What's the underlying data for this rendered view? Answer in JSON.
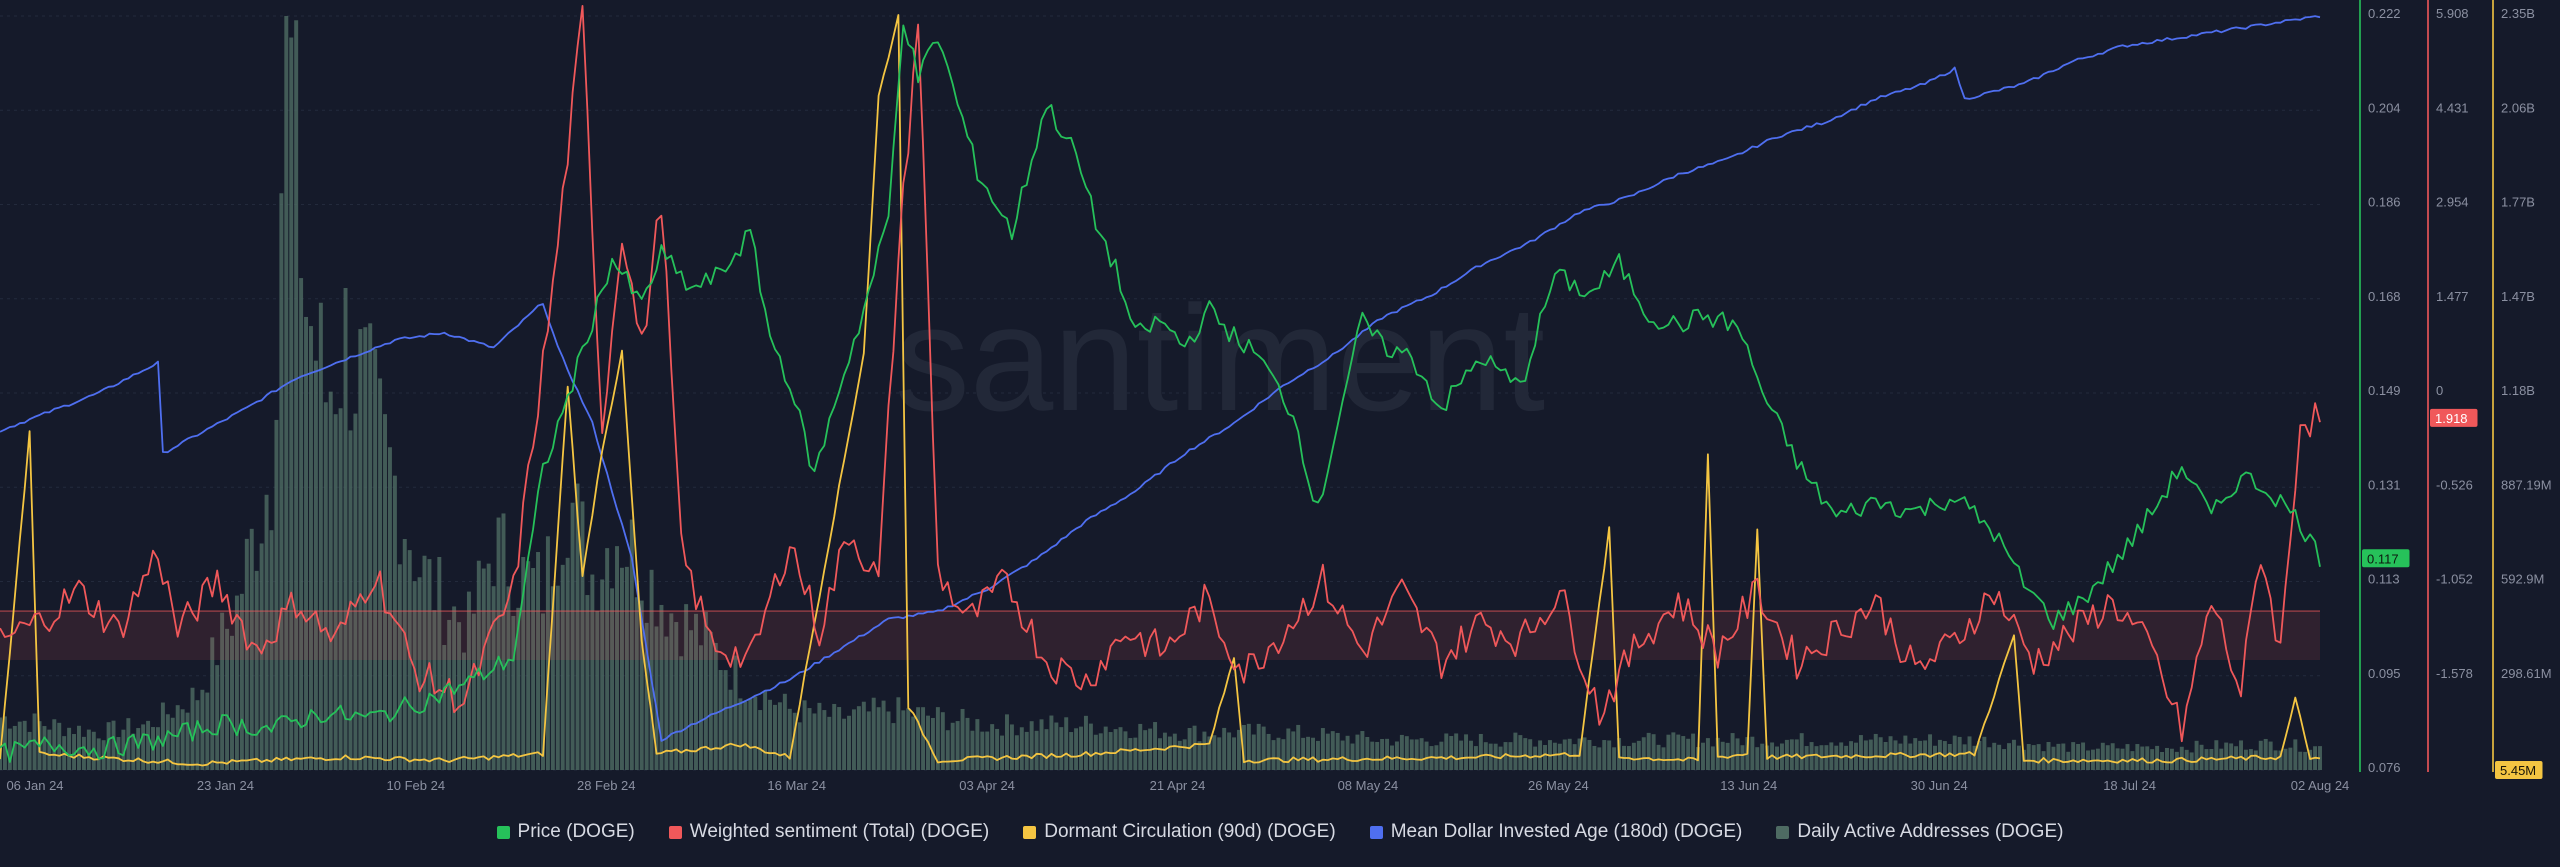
{
  "chart_data": {
    "type": "line",
    "watermark": "santiment",
    "x_ticks": [
      "06 Jan 24",
      "23 Jan 24",
      "10 Feb 24",
      "28 Feb 24",
      "16 Mar 24",
      "03 Apr 24",
      "21 Apr 24",
      "08 May 24",
      "26 May 24",
      "13 Jun 24",
      "30 Jun 24",
      "18 Jul 24",
      "02 Aug 24"
    ],
    "axes": {
      "price": {
        "ticks": [
          "0.222",
          "0.204",
          "0.186",
          "0.168",
          "0.149",
          "0.131",
          "0.113",
          "0.095",
          "0.076"
        ],
        "range": [
          0.076,
          0.222
        ],
        "color": "#26c15a",
        "current": "0.117"
      },
      "sentiment": {
        "ticks": [
          "5.908",
          "4.431",
          "2.954",
          "1.477",
          "0",
          "-0.526",
          "-1.052",
          "-1.578"
        ],
        "range": [
          -1.578,
          5.908
        ],
        "color": "#f0585a",
        "current": "1.918"
      },
      "dormant": {
        "ticks": [
          "2.35B",
          "2.06B",
          "1.77B",
          "1.47B",
          "1.18B",
          "887.19M",
          "592.9M",
          "298.61M"
        ],
        "range": [
          0,
          2.35
        ],
        "color": "#f4c542",
        "current": "5.45M"
      }
    },
    "series": [
      {
        "key": "price",
        "name": "Price (DOGE)",
        "color": "#26c15a",
        "values": [
          [
            0,
            0.079
          ],
          [
            10,
            0.081
          ],
          [
            20,
            0.08
          ],
          [
            33,
            0.082
          ],
          [
            45,
            0.085
          ],
          [
            55,
            0.084
          ],
          [
            65,
            0.087
          ],
          [
            75,
            0.086
          ],
          [
            85,
            0.089
          ],
          [
            95,
            0.093
          ],
          [
            104,
            0.098
          ],
          [
            110,
            0.134
          ],
          [
            115,
            0.148
          ],
          [
            120,
            0.163
          ],
          [
            124,
            0.175
          ],
          [
            130,
            0.166
          ],
          [
            134,
            0.176
          ],
          [
            140,
            0.169
          ],
          [
            146,
            0.172
          ],
          [
            152,
            0.18
          ],
          [
            156,
            0.16
          ],
          [
            160,
            0.151
          ],
          [
            165,
            0.133
          ],
          [
            170,
            0.15
          ],
          [
            175,
            0.165
          ],
          [
            180,
            0.183
          ],
          [
            183,
            0.222
          ],
          [
            186,
            0.21
          ],
          [
            190,
            0.218
          ],
          [
            194,
            0.205
          ],
          [
            198,
            0.192
          ],
          [
            205,
            0.18
          ],
          [
            212,
            0.205
          ],
          [
            218,
            0.195
          ],
          [
            222,
            0.182
          ],
          [
            226,
            0.173
          ],
          [
            230,
            0.16
          ],
          [
            235,
            0.163
          ],
          [
            240,
            0.158
          ],
          [
            245,
            0.165
          ],
          [
            250,
            0.16
          ],
          [
            255,
            0.156
          ],
          [
            262,
            0.145
          ],
          [
            267,
            0.126
          ],
          [
            272,
            0.148
          ],
          [
            276,
            0.163
          ],
          [
            280,
            0.158
          ],
          [
            286,
            0.156
          ],
          [
            292,
            0.146
          ],
          [
            300,
            0.156
          ],
          [
            308,
            0.15
          ],
          [
            315,
            0.172
          ],
          [
            322,
            0.168
          ],
          [
            328,
            0.174
          ],
          [
            334,
            0.164
          ],
          [
            340,
            0.162
          ],
          [
            345,
            0.164
          ],
          [
            352,
            0.162
          ],
          [
            358,
            0.147
          ],
          [
            365,
            0.134
          ],
          [
            372,
            0.125
          ],
          [
            380,
            0.128
          ],
          [
            388,
            0.126
          ],
          [
            396,
            0.129
          ],
          [
            404,
            0.122
          ],
          [
            410,
            0.112
          ],
          [
            416,
            0.105
          ],
          [
            422,
            0.109
          ],
          [
            430,
            0.118
          ],
          [
            436,
            0.126
          ],
          [
            442,
            0.135
          ],
          [
            448,
            0.125
          ],
          [
            454,
            0.133
          ],
          [
            460,
            0.13
          ],
          [
            466,
            0.124
          ],
          [
            470,
            0.117
          ]
        ]
      },
      {
        "key": "sentiment",
        "name": "Weighted sentiment (Total) (DOGE)",
        "color": "#f0585a",
        "values": [
          [
            0,
            -0.3
          ],
          [
            8,
            -0.1
          ],
          [
            16,
            0.2
          ],
          [
            24,
            -0.2
          ],
          [
            32,
            0.6
          ],
          [
            36,
            -0.2
          ],
          [
            44,
            0.3
          ],
          [
            52,
            -0.4
          ],
          [
            60,
            0.1
          ],
          [
            68,
            -0.3
          ],
          [
            76,
            0.4
          ],
          [
            84,
            -0.6
          ],
          [
            94,
            -0.9
          ],
          [
            104,
            0.2
          ],
          [
            112,
            3.2
          ],
          [
            118,
            5.9
          ],
          [
            122,
            1.8
          ],
          [
            126,
            3.8
          ],
          [
            130,
            2.6
          ],
          [
            134,
            4.1
          ],
          [
            138,
            0.6
          ],
          [
            144,
            -0.3
          ],
          [
            152,
            -0.5
          ],
          [
            160,
            0.7
          ],
          [
            166,
            -0.2
          ],
          [
            172,
            0.8
          ],
          [
            178,
            0.3
          ],
          [
            182,
            3.5
          ],
          [
            186,
            5.9
          ],
          [
            190,
            0.4
          ],
          [
            196,
            -0.1
          ],
          [
            204,
            0.3
          ],
          [
            212,
            -0.5
          ],
          [
            220,
            -0.7
          ],
          [
            228,
            -0.2
          ],
          [
            236,
            -0.4
          ],
          [
            244,
            0.1
          ],
          [
            252,
            -0.6
          ],
          [
            260,
            -0.2
          ],
          [
            268,
            0.3
          ],
          [
            276,
            -0.4
          ],
          [
            284,
            0.2
          ],
          [
            292,
            -0.5
          ],
          [
            300,
            -0.1
          ],
          [
            308,
            -0.3
          ],
          [
            316,
            0.2
          ],
          [
            324,
            -1.0
          ],
          [
            332,
            -0.3
          ],
          [
            340,
            0.1
          ],
          [
            348,
            -0.4
          ],
          [
            356,
            0.2
          ],
          [
            364,
            -0.5
          ],
          [
            372,
            -0.2
          ],
          [
            380,
            0.1
          ],
          [
            388,
            -0.6
          ],
          [
            396,
            -0.3
          ],
          [
            404,
            0.2
          ],
          [
            412,
            -0.5
          ],
          [
            420,
            -0.2
          ],
          [
            428,
            0.1
          ],
          [
            436,
            -0.4
          ],
          [
            442,
            -1.2
          ],
          [
            448,
            0.1
          ],
          [
            454,
            -0.8
          ],
          [
            458,
            0.6
          ],
          [
            462,
            -0.4
          ],
          [
            466,
            1.9
          ],
          [
            470,
            1.9
          ]
        ]
      },
      {
        "key": "dormant",
        "name": "Dormant Circulation (90d) (DOGE)",
        "color": "#f4c542",
        "values": [
          [
            0,
            0.03
          ],
          [
            6,
            1.05
          ],
          [
            8,
            0.05
          ],
          [
            40,
            0.02
          ],
          [
            70,
            0.04
          ],
          [
            90,
            0.03
          ],
          [
            110,
            0.05
          ],
          [
            115,
            1.2
          ],
          [
            118,
            0.6
          ],
          [
            122,
            1.0
          ],
          [
            126,
            1.3
          ],
          [
            130,
            0.4
          ],
          [
            133,
            0.05
          ],
          [
            150,
            0.08
          ],
          [
            160,
            0.04
          ],
          [
            175,
            1.3
          ],
          [
            178,
            2.1
          ],
          [
            182,
            2.35
          ],
          [
            184,
            0.2
          ],
          [
            190,
            0.03
          ],
          [
            220,
            0.05
          ],
          [
            245,
            0.08
          ],
          [
            250,
            0.35
          ],
          [
            252,
            0.03
          ],
          [
            300,
            0.04
          ],
          [
            320,
            0.05
          ],
          [
            326,
            0.75
          ],
          [
            328,
            0.04
          ],
          [
            344,
            0.03
          ],
          [
            346,
            0.98
          ],
          [
            348,
            0.04
          ],
          [
            354,
            0.05
          ],
          [
            356,
            0.75
          ],
          [
            358,
            0.04
          ],
          [
            400,
            0.05
          ],
          [
            408,
            0.42
          ],
          [
            410,
            0.03
          ],
          [
            440,
            0.03
          ],
          [
            462,
            0.04
          ],
          [
            465,
            0.22
          ],
          [
            468,
            0.04
          ],
          [
            470,
            0.03
          ]
        ]
      },
      {
        "key": "mdia",
        "name": "Mean Dollar Invested Age (180d) (DOGE)",
        "color": "#4f6ff0",
        "values": [
          [
            0,
            0.45
          ],
          [
            20,
            0.5
          ],
          [
            32,
            0.54
          ],
          [
            33,
            0.42
          ],
          [
            50,
            0.48
          ],
          [
            60,
            0.52
          ],
          [
            80,
            0.57
          ],
          [
            90,
            0.58
          ],
          [
            100,
            0.56
          ],
          [
            110,
            0.62
          ],
          [
            113,
            0.56
          ],
          [
            120,
            0.46
          ],
          [
            128,
            0.28
          ],
          [
            134,
            0.04
          ],
          [
            140,
            0.06
          ],
          [
            150,
            0.09
          ],
          [
            160,
            0.12
          ],
          [
            170,
            0.16
          ],
          [
            180,
            0.2
          ],
          [
            190,
            0.21
          ],
          [
            200,
            0.24
          ],
          [
            210,
            0.28
          ],
          [
            220,
            0.33
          ],
          [
            230,
            0.37
          ],
          [
            240,
            0.42
          ],
          [
            250,
            0.46
          ],
          [
            260,
            0.51
          ],
          [
            270,
            0.55
          ],
          [
            280,
            0.6
          ],
          [
            290,
            0.63
          ],
          [
            300,
            0.67
          ],
          [
            310,
            0.7
          ],
          [
            320,
            0.74
          ],
          [
            330,
            0.76
          ],
          [
            340,
            0.79
          ],
          [
            350,
            0.81
          ],
          [
            360,
            0.84
          ],
          [
            370,
            0.86
          ],
          [
            380,
            0.89
          ],
          [
            390,
            0.91
          ],
          [
            396,
            0.93
          ],
          [
            398,
            0.89
          ],
          [
            410,
            0.91
          ],
          [
            420,
            0.94
          ],
          [
            430,
            0.96
          ],
          [
            440,
            0.97
          ],
          [
            450,
            0.98
          ],
          [
            460,
            0.99
          ],
          [
            470,
            1.0
          ]
        ]
      },
      {
        "key": "daa",
        "name": "Daily Active Addresses (DOGE)",
        "color": "#4e6b63",
        "values": [
          [
            0,
            0.07
          ],
          [
            10,
            0.06
          ],
          [
            20,
            0.05
          ],
          [
            30,
            0.06
          ],
          [
            40,
            0.1
          ],
          [
            48,
            0.22
          ],
          [
            55,
            0.4
          ],
          [
            58,
            1.0
          ],
          [
            62,
            0.62
          ],
          [
            66,
            0.5
          ],
          [
            70,
            0.57
          ],
          [
            75,
            0.48
          ],
          [
            80,
            0.38
          ],
          [
            85,
            0.27
          ],
          [
            90,
            0.22
          ],
          [
            95,
            0.19
          ],
          [
            100,
            0.3
          ],
          [
            105,
            0.26
          ],
          [
            110,
            0.24
          ],
          [
            115,
            0.37
          ],
          [
            120,
            0.26
          ],
          [
            125,
            0.32
          ],
          [
            130,
            0.27
          ],
          [
            136,
            0.21
          ],
          [
            142,
            0.18
          ],
          [
            150,
            0.12
          ],
          [
            160,
            0.08
          ],
          [
            170,
            0.07
          ],
          [
            180,
            0.08
          ],
          [
            190,
            0.07
          ],
          [
            200,
            0.06
          ],
          [
            220,
            0.06
          ],
          [
            240,
            0.05
          ],
          [
            260,
            0.05
          ],
          [
            280,
            0.04
          ],
          [
            300,
            0.04
          ],
          [
            320,
            0.04
          ],
          [
            340,
            0.04
          ],
          [
            360,
            0.04
          ],
          [
            380,
            0.04
          ],
          [
            400,
            0.04
          ],
          [
            420,
            0.03
          ],
          [
            440,
            0.03
          ],
          [
            460,
            0.035
          ],
          [
            470,
            0.03
          ]
        ]
      }
    ]
  },
  "legend": [
    {
      "label": "Price (DOGE)",
      "color": "#26c15a"
    },
    {
      "label": "Weighted sentiment (Total) (DOGE)",
      "color": "#f0585a"
    },
    {
      "label": "Dormant Circulation (90d) (DOGE)",
      "color": "#f4c542"
    },
    {
      "label": "Mean Dollar Invested Age (180d) (DOGE)",
      "color": "#4f6ff0"
    },
    {
      "label": "Daily Active Addresses (DOGE)",
      "color": "#4e6b63"
    }
  ]
}
